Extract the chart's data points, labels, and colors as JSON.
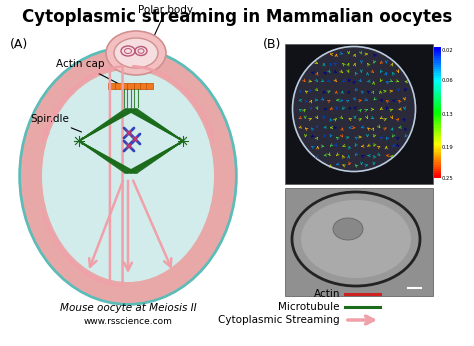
{
  "title": "Cytoplasmic streaming in Mammalian oocytes",
  "title_fontsize": 12,
  "bg_color": "#ffffff",
  "label_A": "(A)",
  "label_B": "(B)",
  "label_polar_body": "Polar body",
  "label_actin_cap": "Actin cap",
  "label_spindle": "Spindle",
  "label_bottom1": "Mouse oocyte at Meiosis II",
  "label_bottom2": "www.rsscience.com",
  "legend_actin": "Actin",
  "legend_microtubule": "Microtubule",
  "legend_streaming": "Cytoplasmic Streaming",
  "cell_outer_color": "#5bbcb8",
  "cell_inner_bg": "#c8e8ea",
  "cortex_color": "#e8a8a8",
  "polar_body_outer": "#f4bfc0",
  "polar_body_inner": "#f8dde0",
  "actin_color": "#cc2222",
  "microtubule_color": "#1a6b1a",
  "streaming_color": "#f0a0a8",
  "spindle_orange": "#f07820",
  "chr_color": "#3344bb",
  "chr_pink": "#cc3366"
}
